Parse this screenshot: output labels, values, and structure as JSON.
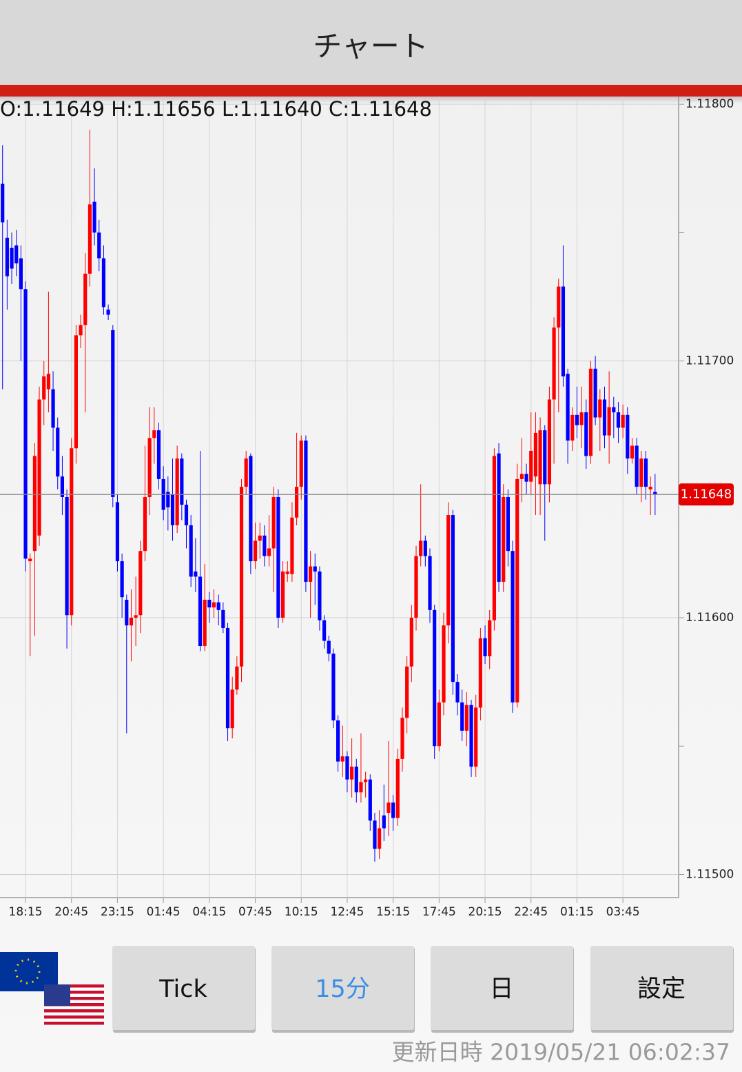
{
  "header": {
    "title": "チャート"
  },
  "ohlc_text": "O:1.11649 H:1.11656 L:1.11640 C:1.11648",
  "buttons": [
    "Tick",
    "15分",
    "日",
    "設定"
  ],
  "updated": "更新日時 2019/05/21 06:02:37",
  "chart_data": {
    "type": "candlestick",
    "up_color": "#ff0000",
    "down_color": "#0000ff",
    "grid": true,
    "ylim": [
      1.11491,
      1.11803
    ],
    "yticks": [
      {
        "value": 1.115,
        "label": "1.11500"
      },
      {
        "value": 1.116,
        "label": "1.11600"
      },
      {
        "value": 1.117,
        "label": "1.11700"
      },
      {
        "value": 1.118,
        "label": "1.11800"
      }
    ],
    "minor_yticks": [
      1.1155,
      1.1165,
      1.1175
    ],
    "last_price": {
      "value": 1.11648,
      "label": "1.11648"
    },
    "categories": [
      null,
      null,
      null,
      null,
      null,
      "18:15",
      null,
      null,
      null,
      null,
      null,
      null,
      null,
      null,
      null,
      "20:45",
      null,
      null,
      null,
      null,
      null,
      null,
      null,
      null,
      null,
      "23:15",
      null,
      null,
      null,
      null,
      null,
      null,
      null,
      null,
      null,
      "01:45",
      null,
      null,
      null,
      null,
      null,
      null,
      null,
      null,
      null,
      "04:15",
      null,
      null,
      null,
      null,
      null,
      null,
      null,
      null,
      null,
      "07:45",
      null,
      null,
      null,
      null,
      null,
      null,
      null,
      null,
      null,
      "10:15",
      null,
      null,
      null,
      null,
      null,
      null,
      null,
      null,
      null,
      "12:45",
      null,
      null,
      null,
      null,
      null,
      null,
      null,
      null,
      null,
      "15:15",
      null,
      null,
      null,
      null,
      null,
      null,
      null,
      null,
      null,
      "17:45",
      null,
      null,
      null,
      null,
      null,
      null,
      null,
      null,
      null,
      "20:15",
      null,
      null,
      null,
      null,
      null,
      null,
      null,
      null,
      null,
      "22:45",
      null,
      null,
      null,
      null,
      null,
      null,
      null,
      null,
      null,
      "01:15",
      null,
      null,
      null,
      null,
      null,
      null,
      null,
      null,
      null,
      "03:45",
      null,
      null,
      null,
      null,
      null,
      null,
      null
    ],
    "open": [
      1.11769,
      1.11748,
      1.11744,
      1.11745,
      1.1174,
      1.11728,
      1.11622,
      1.11626,
      1.11632,
      1.11685,
      1.11689,
      1.11689,
      1.11674,
      1.11655,
      1.11647,
      1.11601,
      1.11666,
      1.1171,
      1.11714,
      1.11734,
      1.11762,
      1.1175,
      1.1174,
      1.1172,
      1.11712,
      1.11645,
      1.11622,
      1.11607,
      1.11597,
      1.116,
      1.11601,
      1.11626,
      1.11647,
      1.1167,
      1.11673,
      1.11654,
      1.11649,
      1.11648,
      1.11636,
      1.11662,
      1.11644,
      1.11636,
      1.11618,
      1.11616,
      1.11589,
      1.11607,
      1.11604,
      1.11606,
      1.11603,
      1.11596,
      1.11557,
      1.11572,
      1.11581,
      1.11651,
      1.11663,
      1.11622,
      1.1163,
      1.11632,
      1.11624,
      1.11627,
      1.11647,
      1.116,
      1.11617,
      1.11617,
      1.11639,
      1.11651,
      1.11669,
      1.11614,
      1.1162,
      1.11618,
      1.11599,
      1.11591,
      1.11586,
      1.1156,
      1.11544,
      1.11546,
      1.11537,
      1.11542,
      1.11532,
      1.11536,
      1.11537,
      1.11521,
      1.1151,
      1.11523,
      1.11524,
      1.11528,
      1.11522,
      1.11545,
      1.11561,
      1.11581,
      1.116,
      1.11624,
      1.1163,
      1.11624,
      1.11603,
      1.1155,
      1.11567,
      1.11597,
      1.1164,
      1.11575,
      1.11567,
      1.11556,
      1.11566,
      1.11542,
      1.11565,
      1.11592,
      1.11585,
      1.11599,
      1.11664,
      1.11614,
      1.11647,
      1.11626,
      1.11567,
      1.11654,
      1.11656,
      1.11653,
      1.11655,
      1.11652,
      1.11673,
      1.11652,
      1.11685,
      1.11713,
      1.11729,
      1.11695,
      1.11669,
      1.11679,
      1.11675,
      1.1168,
      1.11663,
      1.11697,
      1.11678,
      1.11685,
      1.11671,
      1.11682,
      1.1168,
      1.11674,
      1.11679,
      1.11662,
      1.11667,
      1.11651,
      1.11662,
      1.1165,
      1.11649
    ],
    "high": [
      1.11784,
      1.11755,
      1.1175,
      1.11751,
      1.11745,
      1.11731,
      1.11625,
      1.11668,
      1.1169,
      1.117,
      1.11727,
      1.11696,
      1.11678,
      1.11663,
      1.1165,
      1.1167,
      1.11714,
      1.11718,
      1.11742,
      1.1179,
      1.11775,
      1.11755,
      1.11745,
      1.11722,
      1.11714,
      1.11648,
      1.11625,
      1.11609,
      1.11611,
      1.11616,
      1.1163,
      1.11667,
      1.11682,
      1.11682,
      1.11676,
      1.11659,
      1.11655,
      1.11662,
      1.11667,
      1.11664,
      1.11646,
      1.1164,
      1.11631,
      1.11665,
      1.11621,
      1.1161,
      1.11611,
      1.11609,
      1.11606,
      1.11598,
      1.11577,
      1.11585,
      1.11654,
      1.11665,
      1.11664,
      1.11637,
      1.11637,
      1.11636,
      1.1164,
      1.11651,
      1.1165,
      1.11622,
      1.11622,
      1.11645,
      1.11672,
      1.11671,
      1.11671,
      1.11626,
      1.11625,
      1.1162,
      1.11601,
      1.11593,
      1.11588,
      1.11562,
      1.11558,
      1.11548,
      1.11553,
      1.11545,
      1.11555,
      1.1154,
      1.11539,
      1.11524,
      1.11525,
      1.11535,
      1.11552,
      1.11531,
      1.11549,
      1.11565,
      1.11585,
      1.11605,
      1.11628,
      1.11652,
      1.11632,
      1.11627,
      1.11605,
      1.11572,
      1.11602,
      1.11645,
      1.11642,
      1.11578,
      1.11572,
      1.11571,
      1.11568,
      1.1157,
      1.11596,
      1.11597,
      1.11603,
      1.11666,
      1.11668,
      1.11652,
      1.1165,
      1.1163,
      1.1166,
      1.1167,
      1.1166,
      1.1168,
      1.1168,
      1.11678,
      1.11675,
      1.1169,
      1.11717,
      1.11732,
      1.11745,
      1.11697,
      1.11682,
      1.1169,
      1.1169,
      1.11685,
      1.117,
      1.11702,
      1.11689,
      1.1169,
      1.11696,
      1.11686,
      1.11684,
      1.11683,
      1.11682,
      1.1167,
      1.1167,
      1.11665,
      1.11665,
      1.11655,
      1.11656
    ],
    "low": [
      1.11689,
      1.1172,
      1.1173,
      1.11733,
      1.117,
      1.11618,
      1.11585,
      1.11593,
      1.11628,
      1.11675,
      1.1168,
      1.11665,
      1.1165,
      1.1164,
      1.11588,
      1.11597,
      1.1166,
      1.11705,
      1.1168,
      1.11729,
      1.11745,
      1.11735,
      1.11718,
      1.11716,
      1.11643,
      1.11618,
      1.116,
      1.11555,
      1.11583,
      1.11589,
      1.11594,
      1.11622,
      1.1164,
      1.1166,
      1.1165,
      1.11638,
      1.11634,
      1.1163,
      1.11633,
      1.11638,
      1.11627,
      1.11612,
      1.1161,
      1.11587,
      1.11587,
      1.11598,
      1.116,
      1.11597,
      1.11594,
      1.11552,
      1.11553,
      1.1157,
      1.11575,
      1.11648,
      1.11617,
      1.11619,
      1.11623,
      1.1162,
      1.1162,
      1.1161,
      1.11596,
      1.11598,
      1.11614,
      1.11614,
      1.11636,
      1.11646,
      1.1161,
      1.116,
      1.11605,
      1.11595,
      1.11588,
      1.11583,
      1.11557,
      1.1154,
      1.11538,
      1.11532,
      1.1153,
      1.11528,
      1.11528,
      1.1153,
      1.11517,
      1.11505,
      1.11506,
      1.11513,
      1.11515,
      1.11517,
      1.11519,
      1.1154,
      1.11555,
      1.11575,
      1.11595,
      1.1162,
      1.1162,
      1.11598,
      1.11545,
      1.11548,
      1.11562,
      1.1159,
      1.1157,
      1.11562,
      1.11552,
      1.1155,
      1.11538,
      1.11538,
      1.1156,
      1.11582,
      1.1158,
      1.11595,
      1.1161,
      1.1161,
      1.1162,
      1.11563,
      1.11565,
      1.11645,
      1.11648,
      1.11648,
      1.1164,
      1.1164,
      1.1163,
      1.11645,
      1.1166,
      1.1168,
      1.1169,
      1.1166,
      1.11665,
      1.1167,
      1.11666,
      1.11658,
      1.1166,
      1.11675,
      1.11665,
      1.11666,
      1.1166,
      1.1167,
      1.11668,
      1.1167,
      1.11656,
      1.1166,
      1.11648,
      1.11645,
      1.11646,
      1.1164,
      1.1164
    ],
    "close": [
      1.11754,
      1.11733,
      1.11736,
      1.11738,
      1.11728,
      1.11623,
      1.11623,
      1.11663,
      1.11685,
      1.11694,
      1.11695,
      1.11674,
      1.11655,
      1.11647,
      1.11601,
      1.11666,
      1.1171,
      1.11714,
      1.11734,
      1.11761,
      1.1175,
      1.1174,
      1.11721,
      1.11718,
      1.11647,
      1.11622,
      1.11608,
      1.11597,
      1.116,
      1.11601,
      1.11626,
      1.11647,
      1.1167,
      1.11673,
      1.11654,
      1.11642,
      1.11643,
      1.11636,
      1.11662,
      1.11644,
      1.11636,
      1.11616,
      1.11616,
      1.11589,
      1.11607,
      1.11604,
      1.11606,
      1.11603,
      1.11596,
      1.11557,
      1.11572,
      1.11581,
      1.11651,
      1.11662,
      1.11622,
      1.1163,
      1.11632,
      1.11624,
      1.11627,
      1.11647,
      1.116,
      1.11618,
      1.11618,
      1.11639,
      1.11651,
      1.11669,
      1.11614,
      1.1162,
      1.11618,
      1.11599,
      1.11591,
      1.11586,
      1.1156,
      1.11544,
      1.11546,
      1.11537,
      1.11542,
      1.11532,
      1.11536,
      1.11537,
      1.11521,
      1.1151,
      1.11518,
      1.11518,
      1.11528,
      1.11522,
      1.11545,
      1.11561,
      1.11581,
      1.116,
      1.11624,
      1.1163,
      1.11624,
      1.11603,
      1.1155,
      1.11567,
      1.11597,
      1.1164,
      1.11575,
      1.11567,
      1.11556,
      1.11566,
      1.11542,
      1.11565,
      1.11592,
      1.11585,
      1.11599,
      1.11663,
      1.11614,
      1.11647,
      1.11626,
      1.11567,
      1.11654,
      1.11656,
      1.11653,
      1.11665,
      1.11672,
      1.11673,
      1.11652,
      1.11685,
      1.11713,
      1.11729,
      1.11694,
      1.11669,
      1.11679,
      1.11675,
      1.1168,
      1.11663,
      1.11697,
      1.11678,
      1.11685,
      1.11671,
      1.11682,
      1.1168,
      1.11674,
      1.11679,
      1.11662,
      1.11667,
      1.11651,
      1.11662,
      1.11651,
      1.11651,
      1.11648
    ]
  }
}
